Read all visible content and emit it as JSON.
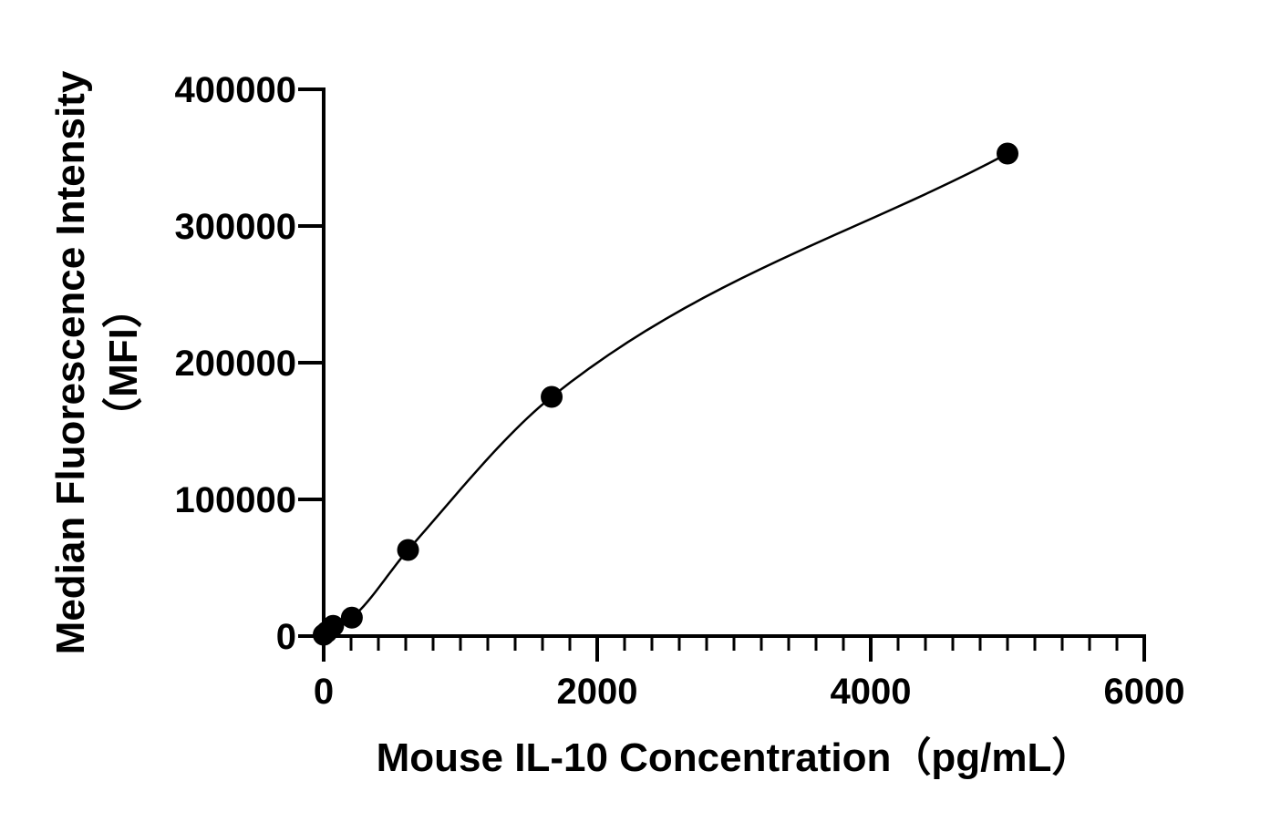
{
  "chart_data": {
    "type": "scatter",
    "xlabel": "Mouse IL-10 Concentration（pg/mL）",
    "ylabel_line1": "Median Fluorescence Intensity",
    "ylabel_line2": "（MFI）",
    "xlim": [
      0,
      6000
    ],
    "ylim": [
      0,
      400000
    ],
    "x_ticks": [
      0,
      2000,
      4000,
      6000
    ],
    "x_tick_labels": [
      "0",
      "2000",
      "4000",
      "6000"
    ],
    "x_minor_step": 200,
    "y_ticks": [
      0,
      100000,
      200000,
      300000,
      400000
    ],
    "y_tick_labels": [
      "0",
      "100000",
      "200000",
      "300000",
      "400000"
    ],
    "grid": false,
    "series": [
      {
        "points": [
          {
            "x": 0,
            "y": 1000
          },
          {
            "x": 23,
            "y": 3000
          },
          {
            "x": 69,
            "y": 7500
          },
          {
            "x": 206,
            "y": 13500
          },
          {
            "x": 617,
            "y": 63000
          },
          {
            "x": 1667,
            "y": 175000
          },
          {
            "x": 5000,
            "y": 353000
          }
        ],
        "fit_curve": true,
        "color": "#000000"
      }
    ]
  }
}
